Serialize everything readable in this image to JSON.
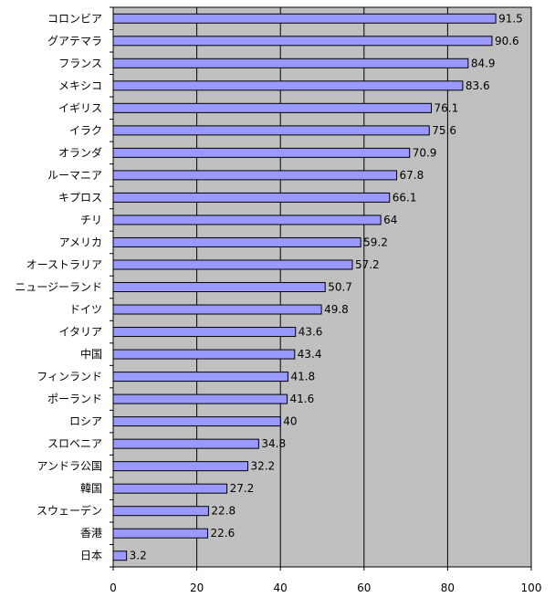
{
  "chart_data": {
    "type": "bar",
    "orientation": "horizontal",
    "categories": [
      "コロンビア",
      "グアテマラ",
      "フランス",
      "メキシコ",
      "イギリス",
      "イラク",
      "オランダ",
      "ルーマニア",
      "キプロス",
      "チリ",
      "アメリカ",
      "オーストラリア",
      "ニュージーランド",
      "ドイツ",
      "イタリア",
      "中国",
      "フィンランド",
      "ポーランド",
      "ロシア",
      "スロベニア",
      "アンドラ公国",
      "韓国",
      "スウェーデン",
      "香港",
      "日本"
    ],
    "values": [
      91.5,
      90.6,
      84.9,
      83.6,
      76.1,
      75.6,
      70.9,
      67.8,
      66.1,
      64,
      59.2,
      57.2,
      50.7,
      49.8,
      43.6,
      43.4,
      41.8,
      41.6,
      40,
      34.8,
      32.2,
      27.2,
      22.8,
      22.6,
      3.2
    ],
    "value_labels": [
      "91.5",
      "90.6",
      "84.9",
      "83.6",
      "76.1",
      "75.6",
      "70.9",
      "67.8",
      "66.1",
      "64",
      "59.2",
      "57.2",
      "50.7",
      "49.8",
      "43.6",
      "43.4",
      "41.8",
      "41.6",
      "40",
      "34.8",
      "32.2",
      "27.2",
      "22.8",
      "22.6",
      "3.2"
    ],
    "xlim": [
      0,
      100
    ],
    "x_ticks": [
      "0",
      "20",
      "40",
      "60",
      "80",
      "100"
    ],
    "grid": "vertical",
    "legend": "none",
    "colors": {
      "bar_fill": "#9999ff",
      "bar_stroke": "#000000",
      "plot_background": "#c0c0c0",
      "gridline": "#000000"
    }
  }
}
